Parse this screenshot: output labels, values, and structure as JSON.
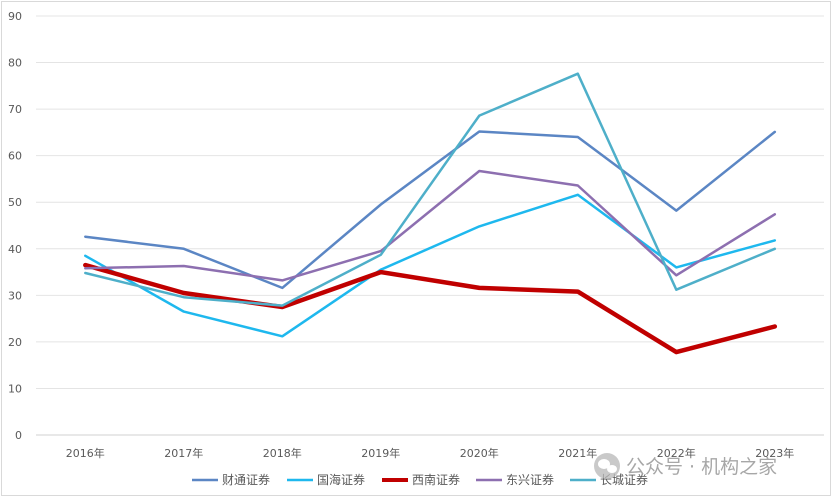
{
  "chart_data": {
    "type": "line",
    "title": "",
    "xlabel": "",
    "ylabel": "",
    "categories": [
      "2016年",
      "2017年",
      "2018年",
      "2019年",
      "2020年",
      "2021年",
      "2022年",
      "2023年"
    ],
    "y_ticks": [
      "0",
      "10",
      "20",
      "30",
      "40",
      "50",
      "60",
      "70",
      "80",
      "90"
    ],
    "ylim": [
      0,
      90
    ],
    "grid": true,
    "legend_position": "bottom",
    "series": [
      {
        "name": "财通证券",
        "color": "#5b86c4",
        "line": "normal",
        "values": [
          42.6,
          40.0,
          31.6,
          49.5,
          65.2,
          64.0,
          48.2,
          65.1
        ]
      },
      {
        "name": "国海证券",
        "color": "#1eb8ee",
        "line": "normal",
        "values": [
          38.5,
          26.5,
          21.2,
          35.5,
          44.8,
          51.6,
          36.0,
          41.8
        ]
      },
      {
        "name": "西南证券",
        "color": "#c00000",
        "line": "bold",
        "values": [
          36.5,
          30.5,
          27.5,
          35.0,
          31.6,
          30.8,
          17.8,
          23.3
        ]
      },
      {
        "name": "东兴证券",
        "color": "#8d6fb0",
        "line": "normal",
        "values": [
          35.8,
          36.3,
          33.2,
          39.5,
          56.7,
          53.6,
          34.3,
          47.4
        ]
      },
      {
        "name": "长城证券",
        "color": "#4eafc9",
        "line": "normal",
        "values": [
          34.8,
          29.6,
          27.8,
          38.7,
          68.6,
          77.6,
          31.2,
          40.0
        ]
      }
    ]
  },
  "watermark": {
    "icon": "wechat-icon",
    "text": "公众号 · 机构之家"
  }
}
